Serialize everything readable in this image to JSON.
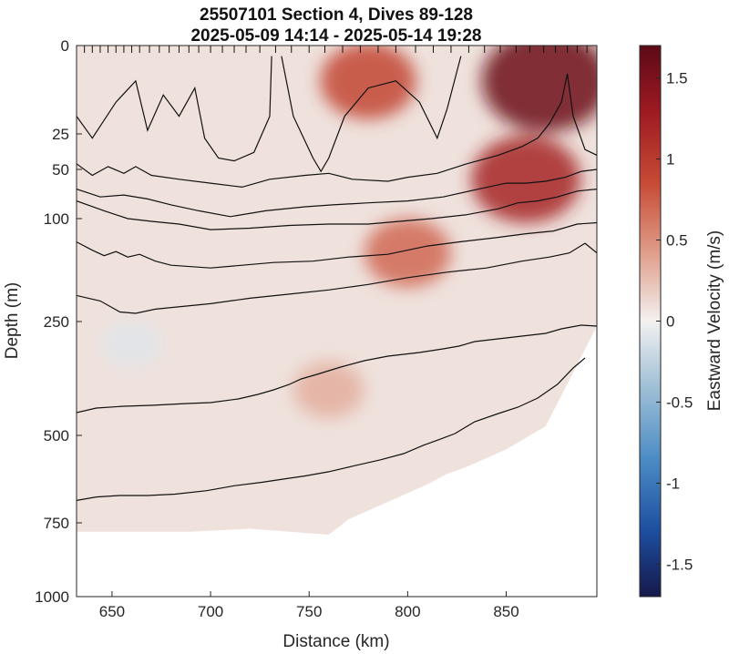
{
  "figure": {
    "title_line1": "25507101 Section 4, Dives 89-128",
    "title_line2": "2025-05-09 14:14 - 2025-05-14 19:28"
  },
  "chart_data": {
    "type": "heatmap",
    "title": "25507101 Section 4, Dives 89-128",
    "subtitle": "2025-05-09 14:14 - 2025-05-14 19:28",
    "xlabel": "Distance (km)",
    "ylabel": "Depth (m)",
    "xlim": [
      632,
      896
    ],
    "depth_ticks": [
      0,
      25,
      50,
      100,
      250,
      500,
      750,
      1000
    ],
    "x_ticks": [
      650,
      700,
      750,
      800,
      850
    ],
    "y_scale": "stretched (non-linear depth axis)",
    "grid": false,
    "colorbar": {
      "label": "Eastward Velocity (m/s)",
      "range": [
        -1.7,
        1.7
      ],
      "ticks": [
        "1.5",
        "1",
        "0.5",
        "0",
        "-0.5",
        "-1",
        "-1.5"
      ],
      "tick_values": [
        1.5,
        1,
        0.5,
        0,
        -0.5,
        -1,
        -1.5
      ],
      "positive_color": "#5c0a16",
      "zero_color": "#f3f1f0",
      "negative_color": "#16184a"
    },
    "dive_marks_km": [
      636,
      640,
      644,
      648,
      652,
      656,
      660,
      664,
      669,
      674,
      679,
      684,
      689,
      694,
      700,
      706,
      712,
      718,
      725,
      733,
      741,
      750,
      758,
      767,
      776,
      785,
      794,
      804,
      813,
      822,
      831,
      839,
      847,
      855,
      862,
      869,
      875,
      881,
      886,
      891
    ],
    "max_depth_km_profile": [
      [
        632,
        780
      ],
      [
        690,
        780
      ],
      [
        720,
        770
      ],
      [
        740,
        780
      ],
      [
        760,
        790
      ],
      [
        770,
        740
      ],
      [
        790,
        690
      ],
      [
        810,
        640
      ],
      [
        820,
        610
      ],
      [
        830,
        590
      ],
      [
        850,
        540
      ],
      [
        870,
        480
      ],
      [
        896,
        260
      ]
    ],
    "velocity_cores": [
      {
        "distance_km": 870,
        "depth_m": 10,
        "velocity": 1.6
      },
      {
        "distance_km": 860,
        "depth_m": 60,
        "velocity": 1.2
      },
      {
        "distance_km": 780,
        "depth_m": 10,
        "velocity": 0.9
      },
      {
        "distance_km": 800,
        "depth_m": 150,
        "velocity": 0.7
      },
      {
        "distance_km": 760,
        "depth_m": 400,
        "velocity": 0.35
      },
      {
        "distance_km": 660,
        "depth_m": 300,
        "velocity": -0.1
      }
    ],
    "contours": [
      {
        "points": [
          [
            632,
            20
          ],
          [
            640,
            28
          ],
          [
            652,
            16
          ],
          [
            662,
            10
          ],
          [
            668,
            24
          ],
          [
            676,
            14
          ],
          [
            684,
            20
          ],
          [
            692,
            12
          ],
          [
            697,
            28
          ],
          [
            704,
            42
          ],
          [
            712,
            44
          ],
          [
            722,
            38
          ],
          [
            730,
            20
          ],
          [
            731,
            3
          ]
        ]
      },
      {
        "points": [
          [
            736,
            3
          ],
          [
            742,
            20
          ],
          [
            752,
            42
          ],
          [
            756,
            52
          ],
          [
            760,
            42
          ],
          [
            768,
            20
          ],
          [
            780,
            12
          ],
          [
            794,
            10
          ],
          [
            806,
            16
          ],
          [
            815,
            28
          ],
          [
            820,
            18
          ],
          [
            827,
            3
          ]
        ]
      },
      {
        "points": [
          [
            632,
            46
          ],
          [
            640,
            56
          ],
          [
            648,
            48
          ],
          [
            656,
            54
          ],
          [
            662,
            48
          ],
          [
            670,
            56
          ],
          [
            684,
            60
          ],
          [
            700,
            64
          ],
          [
            716,
            68
          ],
          [
            730,
            60
          ],
          [
            748,
            56
          ],
          [
            760,
            54
          ],
          [
            772,
            60
          ],
          [
            790,
            62
          ],
          [
            800,
            58
          ],
          [
            815,
            54
          ],
          [
            830,
            46
          ],
          [
            846,
            40
          ],
          [
            858,
            34
          ],
          [
            866,
            28
          ],
          [
            872,
            22
          ],
          [
            878,
            16
          ],
          [
            881,
            8
          ],
          [
            884,
            20
          ],
          [
            890,
            36
          ],
          [
            896,
            40
          ]
        ]
      },
      {
        "points": [
          [
            632,
            70
          ],
          [
            644,
            78
          ],
          [
            656,
            76
          ],
          [
            668,
            80
          ],
          [
            680,
            86
          ],
          [
            694,
            92
          ],
          [
            710,
            98
          ],
          [
            728,
            92
          ],
          [
            748,
            88
          ],
          [
            762,
            86
          ],
          [
            780,
            84
          ],
          [
            800,
            82
          ],
          [
            818,
            78
          ],
          [
            836,
            70
          ],
          [
            850,
            64
          ],
          [
            860,
            64
          ],
          [
            870,
            62
          ],
          [
            880,
            58
          ],
          [
            888,
            52
          ],
          [
            896,
            50
          ]
        ]
      },
      {
        "points": [
          [
            632,
            82
          ],
          [
            646,
            92
          ],
          [
            658,
            100
          ],
          [
            670,
            104
          ],
          [
            684,
            108
          ],
          [
            700,
            116
          ],
          [
            720,
            114
          ],
          [
            740,
            110
          ],
          [
            760,
            108
          ],
          [
            780,
            108
          ],
          [
            796,
            104
          ],
          [
            812,
            100
          ],
          [
            830,
            96
          ],
          [
            846,
            90
          ],
          [
            856,
            84
          ],
          [
            866,
            82
          ],
          [
            876,
            78
          ],
          [
            886,
            72
          ],
          [
            896,
            70
          ]
        ]
      },
      {
        "points": [
          [
            632,
            134
          ],
          [
            640,
            146
          ],
          [
            646,
            154
          ],
          [
            652,
            148
          ],
          [
            658,
            156
          ],
          [
            664,
            152
          ],
          [
            672,
            162
          ],
          [
            680,
            168
          ],
          [
            690,
            170
          ],
          [
            700,
            172
          ],
          [
            716,
            168
          ],
          [
            732,
            164
          ],
          [
            752,
            162
          ],
          [
            770,
            156
          ],
          [
            790,
            152
          ],
          [
            810,
            140
          ],
          [
            826,
            134
          ],
          [
            844,
            128
          ],
          [
            860,
            122
          ],
          [
            874,
            118
          ],
          [
            886,
            108
          ],
          [
            896,
            106
          ]
        ]
      },
      {
        "points": [
          [
            632,
            212
          ],
          [
            644,
            220
          ],
          [
            654,
            236
          ],
          [
            662,
            238
          ],
          [
            672,
            232
          ],
          [
            686,
            228
          ],
          [
            700,
            224
          ],
          [
            720,
            216
          ],
          [
            740,
            210
          ],
          [
            760,
            204
          ],
          [
            780,
            196
          ],
          [
            800,
            186
          ],
          [
            820,
            178
          ],
          [
            840,
            172
          ],
          [
            858,
            162
          ],
          [
            872,
            156
          ],
          [
            882,
            150
          ],
          [
            890,
            136
          ],
          [
            896,
            150
          ]
        ]
      },
      {
        "points": [
          [
            632,
            450
          ],
          [
            642,
            440
          ],
          [
            656,
            436
          ],
          [
            670,
            434
          ],
          [
            688,
            430
          ],
          [
            700,
            428
          ],
          [
            714,
            420
          ],
          [
            724,
            410
          ],
          [
            732,
            400
          ],
          [
            740,
            388
          ],
          [
            746,
            376
          ],
          [
            754,
            366
          ],
          [
            766,
            350
          ],
          [
            778,
            336
          ],
          [
            790,
            326
          ],
          [
            806,
            318
          ],
          [
            818,
            310
          ],
          [
            826,
            304
          ],
          [
            834,
            294
          ],
          [
            846,
            288
          ],
          [
            858,
            282
          ],
          [
            870,
            276
          ],
          [
            878,
            266
          ],
          [
            888,
            258
          ],
          [
            896,
            260
          ]
        ]
      },
      {
        "points": [
          [
            632,
            686
          ],
          [
            642,
            676
          ],
          [
            654,
            672
          ],
          [
            668,
            672
          ],
          [
            682,
            668
          ],
          [
            698,
            658
          ],
          [
            712,
            644
          ],
          [
            726,
            634
          ],
          [
            738,
            624
          ],
          [
            748,
            616
          ],
          [
            760,
            604
          ],
          [
            772,
            588
          ],
          [
            786,
            570
          ],
          [
            798,
            552
          ],
          [
            808,
            528
          ],
          [
            816,
            512
          ],
          [
            824,
            496
          ],
          [
            834,
            470
          ],
          [
            846,
            452
          ],
          [
            856,
            438
          ],
          [
            866,
            418
          ],
          [
            876,
            388
          ],
          [
            884,
            352
          ],
          [
            890,
            330
          ]
        ]
      }
    ]
  }
}
